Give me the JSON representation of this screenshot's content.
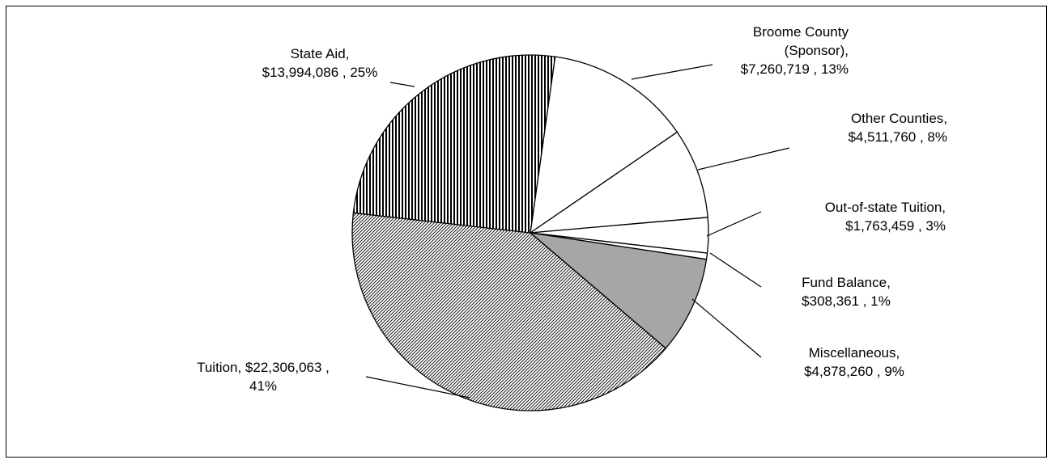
{
  "chart_data": {
    "type": "pie",
    "title": "",
    "slices": [
      {
        "label": "Broome County (Sponsor)",
        "value": 7260719,
        "value_text": "$7,260,719",
        "percent_text": "13%",
        "fill": "white",
        "text_lines": [
          "Broome County",
          "(Sponsor),",
          "$7,260,719 , 13%"
        ]
      },
      {
        "label": "Other Counties",
        "value": 4511760,
        "value_text": "$4,511,760",
        "percent_text": "8%",
        "fill": "white",
        "text_lines": [
          "Other Counties,",
          "$4,511,760 , 8%"
        ]
      },
      {
        "label": "Out-of-state Tuition",
        "value": 1763459,
        "value_text": "$1,763,459",
        "percent_text": "3%",
        "fill": "white",
        "text_lines": [
          "Out-of-state Tuition,",
          "$1,763,459 , 3%"
        ]
      },
      {
        "label": "Fund Balance",
        "value": 308361,
        "value_text": "$308,361",
        "percent_text": "1%",
        "fill": "white",
        "text_lines": [
          "Fund Balance,",
          "$308,361 , 1%"
        ]
      },
      {
        "label": "Miscellaneous",
        "value": 4878260,
        "value_text": "$4,878,260",
        "percent_text": "9%",
        "fill": "gray",
        "text_lines": [
          "Miscellaneous,",
          "$4,878,260 , 9%"
        ]
      },
      {
        "label": "Tuition",
        "value": 22306063,
        "value_text": "$22,306,063",
        "percent_text": "41%",
        "fill": "diagonal-hatch",
        "text_lines": [
          "Tuition,  $22,306,063 ,",
          "41%"
        ]
      },
      {
        "label": "State Aid",
        "value": 13994086,
        "value_text": "$13,994,086",
        "percent_text": "25%",
        "fill": "vertical-hatch",
        "text_lines": [
          "State Aid,",
          "$13,994,086 , 25%"
        ]
      }
    ],
    "colors": {
      "outline": "#000000",
      "gray": "#a6a6a6",
      "white": "#ffffff"
    },
    "legend": "none"
  }
}
